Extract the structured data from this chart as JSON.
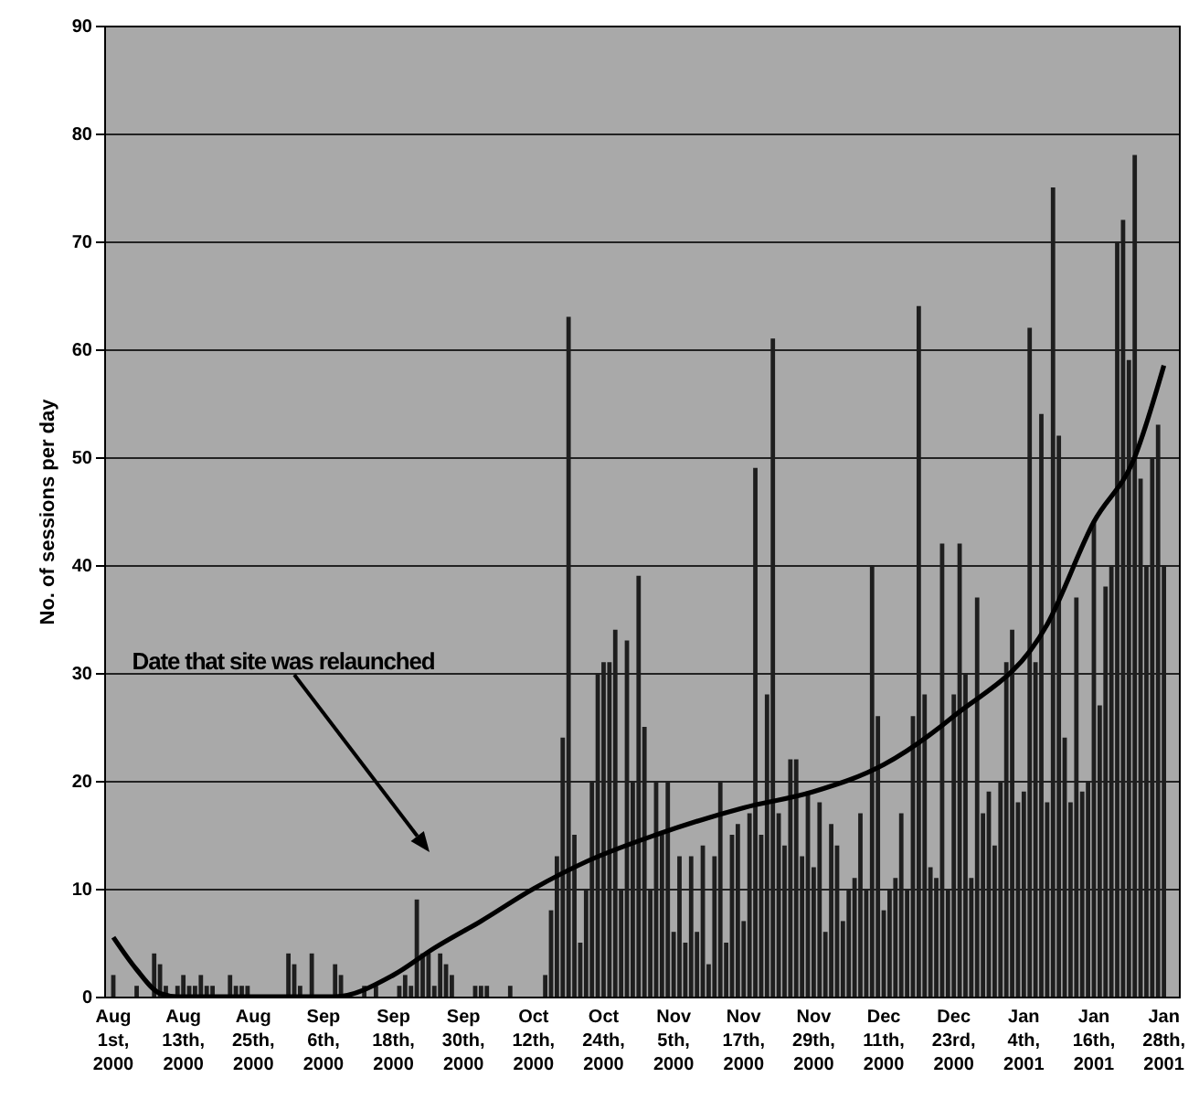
{
  "chart_data": {
    "type": "bar",
    "ylabel": "No. of sessions per day",
    "xlim": [
      "2000-08-01",
      "2001-01-29"
    ],
    "ylim": [
      0,
      90
    ],
    "yticks": [
      0,
      10,
      20,
      30,
      40,
      50,
      60,
      70,
      80,
      90
    ],
    "xticks": [
      {
        "value": "2000-08-01",
        "label": "Aug 1st, 2000"
      },
      {
        "value": "2000-08-13",
        "label": "Aug 13th, 2000"
      },
      {
        "value": "2000-08-25",
        "label": "Aug 25th, 2000"
      },
      {
        "value": "2000-09-06",
        "label": "Sep 6th, 2000"
      },
      {
        "value": "2000-09-18",
        "label": "Sep 18th, 2000"
      },
      {
        "value": "2000-09-30",
        "label": "Sep 30th, 2000"
      },
      {
        "value": "2000-10-12",
        "label": "Oct 12th, 2000"
      },
      {
        "value": "2000-10-24",
        "label": "Oct 24th, 2000"
      },
      {
        "value": "2000-11-05",
        "label": "Nov 5th, 2000"
      },
      {
        "value": "2000-11-17",
        "label": "Nov 17th, 2000"
      },
      {
        "value": "2000-11-29",
        "label": "Nov 29th, 2000"
      },
      {
        "value": "2000-12-11",
        "label": "Dec 11th, 2000"
      },
      {
        "value": "2000-12-23",
        "label": "Dec 23rd, 2000"
      },
      {
        "value": "2001-01-04",
        "label": "Jan 4th, 2001"
      },
      {
        "value": "2001-01-16",
        "label": "Jan 16th, 2001"
      },
      {
        "value": "2001-01-28",
        "label": "Jan 28th, 2001"
      }
    ],
    "grid": "y",
    "annotations": [
      "Date that site was relaunched"
    ],
    "series": [
      {
        "color": "#1e1e1e",
        "x": [
          "2000-08-01",
          "2000-08-02",
          "2000-08-03",
          "2000-08-04",
          "2000-08-05",
          "2000-08-06",
          "2000-08-07",
          "2000-08-08",
          "2000-08-09",
          "2000-08-10",
          "2000-08-11",
          "2000-08-12",
          "2000-08-13",
          "2000-08-14",
          "2000-08-15",
          "2000-08-16",
          "2000-08-17",
          "2000-08-18",
          "2000-08-19",
          "2000-08-20",
          "2000-08-21",
          "2000-08-22",
          "2000-08-23",
          "2000-08-24",
          "2000-08-25",
          "2000-08-26",
          "2000-08-27",
          "2000-08-28",
          "2000-08-29",
          "2000-08-30",
          "2000-08-31",
          "2000-09-01",
          "2000-09-02",
          "2000-09-03",
          "2000-09-04",
          "2000-09-05",
          "2000-09-06",
          "2000-09-07",
          "2000-09-08",
          "2000-09-09",
          "2000-09-10",
          "2000-09-11",
          "2000-09-12",
          "2000-09-13",
          "2000-09-14",
          "2000-09-15",
          "2000-09-16",
          "2000-09-17",
          "2000-09-18",
          "2000-09-19",
          "2000-09-20",
          "2000-09-21",
          "2000-09-22",
          "2000-09-23",
          "2000-09-24",
          "2000-09-25",
          "2000-09-26",
          "2000-09-27",
          "2000-09-28",
          "2000-09-29",
          "2000-09-30",
          "2000-10-01",
          "2000-10-02",
          "2000-10-03",
          "2000-10-04",
          "2000-10-05",
          "2000-10-06",
          "2000-10-07",
          "2000-10-08",
          "2000-10-09",
          "2000-10-10",
          "2000-10-11",
          "2000-10-12",
          "2000-10-13",
          "2000-10-14",
          "2000-10-15",
          "2000-10-16",
          "2000-10-17",
          "2000-10-18",
          "2000-10-19",
          "2000-10-20",
          "2000-10-21",
          "2000-10-22",
          "2000-10-23",
          "2000-10-24",
          "2000-10-25",
          "2000-10-26",
          "2000-10-27",
          "2000-10-28",
          "2000-10-29",
          "2000-10-30",
          "2000-10-31",
          "2000-11-01",
          "2000-11-02",
          "2000-11-03",
          "2000-11-04",
          "2000-11-05",
          "2000-11-06",
          "2000-11-07",
          "2000-11-08",
          "2000-11-09",
          "2000-11-10",
          "2000-11-11",
          "2000-11-12",
          "2000-11-13",
          "2000-11-14",
          "2000-11-15",
          "2000-11-16",
          "2000-11-17",
          "2000-11-18",
          "2000-11-19",
          "2000-11-20",
          "2000-11-21",
          "2000-11-22",
          "2000-11-23",
          "2000-11-24",
          "2000-11-25",
          "2000-11-26",
          "2000-11-27",
          "2000-11-28",
          "2000-11-29",
          "2000-11-30",
          "2000-12-01",
          "2000-12-02",
          "2000-12-03",
          "2000-12-04",
          "2000-12-05",
          "2000-12-06",
          "2000-12-07",
          "2000-12-08",
          "2000-12-09",
          "2000-12-10",
          "2000-12-11",
          "2000-12-12",
          "2000-12-13",
          "2000-12-14",
          "2000-12-15",
          "2000-12-16",
          "2000-12-17",
          "2000-12-18",
          "2000-12-19",
          "2000-12-20",
          "2000-12-21",
          "2000-12-22",
          "2000-12-23",
          "2000-12-24",
          "2000-12-25",
          "2000-12-26",
          "2000-12-27",
          "2000-12-28",
          "2000-12-29",
          "2000-12-30",
          "2000-12-31",
          "2001-01-01",
          "2001-01-02",
          "2001-01-03",
          "2001-01-04",
          "2001-01-05",
          "2001-01-06",
          "2001-01-07",
          "2001-01-08",
          "2001-01-09",
          "2001-01-10",
          "2001-01-11",
          "2001-01-12",
          "2001-01-13",
          "2001-01-14",
          "2001-01-15",
          "2001-01-16",
          "2001-01-17",
          "2001-01-18",
          "2001-01-19",
          "2001-01-20",
          "2001-01-21",
          "2001-01-22",
          "2001-01-23",
          "2001-01-24",
          "2001-01-25",
          "2001-01-26",
          "2001-01-27",
          "2001-01-28"
        ],
        "values": [
          2,
          0,
          0,
          0,
          1,
          0,
          0,
          4,
          3,
          1,
          0,
          1,
          2,
          1,
          1,
          2,
          1,
          1,
          0,
          0,
          2,
          1,
          1,
          1,
          0,
          0,
          0,
          0,
          0,
          0,
          4,
          3,
          1,
          0,
          4,
          0,
          0,
          0,
          3,
          2,
          0,
          0,
          0,
          1,
          0,
          1,
          0,
          0,
          0,
          1,
          2,
          1,
          9,
          4,
          4,
          1,
          4,
          3,
          2,
          0,
          0,
          0,
          1,
          1,
          1,
          0,
          0,
          0,
          1,
          0,
          0,
          0,
          0,
          0,
          2,
          8,
          13,
          24,
          63,
          15,
          5,
          10,
          20,
          30,
          31,
          31,
          34,
          10,
          33,
          20,
          39,
          25,
          10,
          20,
          15,
          20,
          6,
          13,
          5,
          13,
          6,
          14,
          3,
          13,
          20,
          5,
          15,
          16,
          7,
          17,
          49,
          15,
          28,
          61,
          17,
          14,
          22,
          22,
          13,
          19,
          12,
          18,
          6,
          16,
          14,
          7,
          10,
          11,
          17,
          10,
          40,
          26,
          8,
          10,
          11,
          17,
          10,
          26,
          64,
          28,
          12,
          11,
          42,
          10,
          28,
          42,
          30,
          11,
          37,
          17,
          19,
          14,
          20,
          31,
          34,
          18,
          19,
          62,
          31,
          54,
          18,
          75,
          52,
          24,
          18,
          37,
          19,
          20,
          44,
          27,
          38,
          40,
          70,
          72,
          59,
          78,
          48,
          40,
          50,
          53,
          40
        ]
      },
      {
        "type": "line",
        "color": "#000000",
        "x": [
          "2000-08-01",
          "2000-08-05",
          "2000-08-09",
          "2000-08-12",
          "2000-09-08",
          "2000-09-18",
          "2000-09-25",
          "2000-10-03",
          "2000-10-12",
          "2000-10-21",
          "2000-11-02",
          "2000-11-17",
          "2000-11-29",
          "2000-12-11",
          "2000-12-23",
          "2001-01-08",
          "2001-01-16",
          "2001-01-23",
          "2001-01-28"
        ],
        "values": [
          5.5,
          2.5,
          0.3,
          0,
          0,
          2,
          4.5,
          7,
          10,
          12.5,
          15,
          17.5,
          19,
          21.5,
          26,
          34.5,
          44,
          50,
          58.5
        ]
      }
    ]
  }
}
